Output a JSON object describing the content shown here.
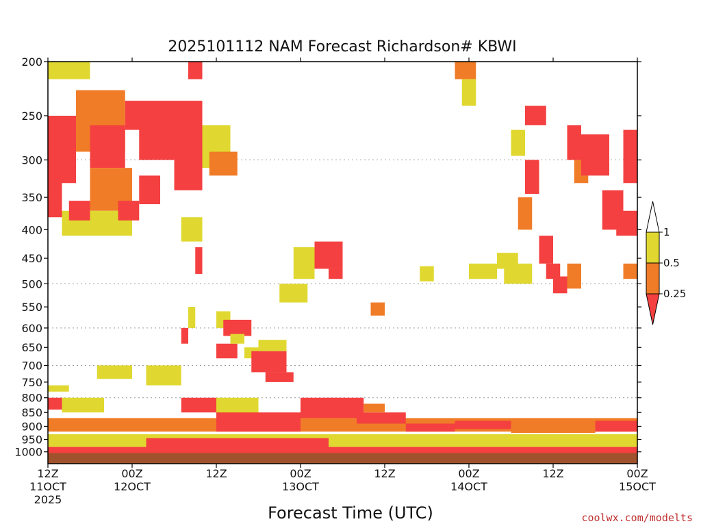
{
  "chart_data": {
    "type": "heatmap",
    "title": "2025101112 NAM Forecast Richardson# KBWI",
    "xlabel": "Forecast Time (UTC)",
    "credit": "coolwx.com/modelts",
    "y_axis": {
      "quantity": "pressure (hPa)",
      "scale": "log",
      "range": [
        1050,
        200
      ],
      "ticks": [
        200,
        250,
        300,
        350,
        400,
        450,
        500,
        550,
        600,
        650,
        700,
        750,
        800,
        850,
        900,
        950,
        1000
      ],
      "dotted_gridlines": [
        300,
        500,
        600,
        700,
        800,
        900
      ]
    },
    "x_axis": {
      "quantity": "forecast hour",
      "range": [
        0,
        84
      ],
      "tick_hours": [
        0,
        12,
        24,
        36,
        48,
        60,
        72,
        84
      ],
      "tick_labels": [
        {
          "hour": 0,
          "line1": "12Z",
          "line2": "11OCT",
          "line3": "2025"
        },
        {
          "hour": 12,
          "line1": "00Z",
          "line2": "12OCT",
          "line3": ""
        },
        {
          "hour": 24,
          "line1": "12Z",
          "line2": "",
          "line3": ""
        },
        {
          "hour": 36,
          "line1": "00Z",
          "line2": "13OCT",
          "line3": ""
        },
        {
          "hour": 48,
          "line1": "12Z",
          "line2": "",
          "line3": ""
        },
        {
          "hour": 60,
          "line1": "00Z",
          "line2": "14OCT",
          "line3": ""
        },
        {
          "hour": 72,
          "line1": "12Z",
          "line2": "",
          "line3": ""
        },
        {
          "hour": 84,
          "line1": "00Z",
          "line2": "15OCT",
          "line3": ""
        }
      ]
    },
    "legend": {
      "placement": "right",
      "boundaries": [
        "1",
        "0.5",
        "0.25"
      ],
      "bins": [
        {
          "range": "> 1",
          "color": "#ffffff"
        },
        {
          "range": "0.5 - 1",
          "color": "#e0d830"
        },
        {
          "range": "0.25 - 0.5",
          "color": "#f07c28"
        },
        {
          "range": "< 0.25",
          "color": "#f44040"
        }
      ]
    },
    "colors": {
      "red": "#f44040",
      "orange": "#f07c28",
      "yellow": "#e0d830",
      "ground": "#a0522d"
    },
    "surface_pressure_hpa": 1020,
    "regions": [
      {
        "h0": 0,
        "h1": 6,
        "p0": 200,
        "p1": 215,
        "bin": "yellow"
      },
      {
        "h0": 0,
        "h1": 2,
        "p0": 250,
        "p1": 380,
        "bin": "red"
      },
      {
        "h0": 1,
        "h1": 4,
        "p0": 250,
        "p1": 330,
        "bin": "red"
      },
      {
        "h0": 4,
        "h1": 11,
        "p0": 225,
        "p1": 290,
        "bin": "orange"
      },
      {
        "h0": 6,
        "h1": 11,
        "p0": 260,
        "p1": 310,
        "bin": "red"
      },
      {
        "h0": 6,
        "h1": 12,
        "p0": 310,
        "p1": 370,
        "bin": "orange"
      },
      {
        "h0": 2,
        "h1": 12,
        "p0": 370,
        "p1": 410,
        "bin": "yellow"
      },
      {
        "h0": 3,
        "h1": 6,
        "p0": 355,
        "p1": 385,
        "bin": "red"
      },
      {
        "h0": 10,
        "h1": 13,
        "p0": 355,
        "p1": 385,
        "bin": "red"
      },
      {
        "h0": 11,
        "h1": 18,
        "p0": 235,
        "p1": 265,
        "bin": "red"
      },
      {
        "h0": 13,
        "h1": 20,
        "p0": 250,
        "p1": 300,
        "bin": "red"
      },
      {
        "h0": 13,
        "h1": 16,
        "p0": 320,
        "p1": 360,
        "bin": "red"
      },
      {
        "h0": 18,
        "h1": 22,
        "p0": 235,
        "p1": 340,
        "bin": "red"
      },
      {
        "h0": 20,
        "h1": 22,
        "p0": 195,
        "p1": 215,
        "bin": "red"
      },
      {
        "h0": 22,
        "h1": 26,
        "p0": 260,
        "p1": 310,
        "bin": "yellow"
      },
      {
        "h0": 23,
        "h1": 27,
        "p0": 290,
        "p1": 320,
        "bin": "orange"
      },
      {
        "h0": 19,
        "h1": 22,
        "p0": 380,
        "p1": 420,
        "bin": "yellow"
      },
      {
        "h0": 21,
        "h1": 22,
        "p0": 430,
        "p1": 480,
        "bin": "red"
      },
      {
        "h0": 19,
        "h1": 20,
        "p0": 600,
        "p1": 640,
        "bin": "red"
      },
      {
        "h0": 20,
        "h1": 21,
        "p0": 550,
        "p1": 600,
        "bin": "yellow"
      },
      {
        "h0": 24,
        "h1": 26,
        "p0": 560,
        "p1": 600,
        "bin": "yellow"
      },
      {
        "h0": 25,
        "h1": 29,
        "p0": 580,
        "p1": 620,
        "bin": "red"
      },
      {
        "h0": 24,
        "h1": 27,
        "p0": 640,
        "p1": 680,
        "bin": "red"
      },
      {
        "h0": 26,
        "h1": 28,
        "p0": 615,
        "p1": 640,
        "bin": "yellow"
      },
      {
        "h0": 28,
        "h1": 30,
        "p0": 650,
        "p1": 680,
        "bin": "yellow"
      },
      {
        "h0": 29,
        "h1": 34,
        "p0": 660,
        "p1": 720,
        "bin": "red"
      },
      {
        "h0": 31,
        "h1": 35,
        "p0": 720,
        "p1": 750,
        "bin": "red"
      },
      {
        "h0": 30,
        "h1": 34,
        "p0": 630,
        "p1": 660,
        "bin": "yellow"
      },
      {
        "h0": 33,
        "h1": 37,
        "p0": 500,
        "p1": 540,
        "bin": "yellow"
      },
      {
        "h0": 35,
        "h1": 38,
        "p0": 430,
        "p1": 490,
        "bin": "yellow"
      },
      {
        "h0": 38,
        "h1": 42,
        "p0": 420,
        "p1": 470,
        "bin": "red"
      },
      {
        "h0": 40,
        "h1": 42,
        "p0": 470,
        "p1": 490,
        "bin": "red"
      },
      {
        "h0": 46,
        "h1": 48,
        "p0": 540,
        "p1": 570,
        "bin": "orange"
      },
      {
        "h0": 53,
        "h1": 55,
        "p0": 465,
        "p1": 495,
        "bin": "yellow"
      },
      {
        "h0": 58,
        "h1": 61,
        "p0": 200,
        "p1": 215,
        "bin": "orange"
      },
      {
        "h0": 59,
        "h1": 61,
        "p0": 215,
        "p1": 240,
        "bin": "yellow"
      },
      {
        "h0": 60,
        "h1": 64,
        "p0": 460,
        "p1": 490,
        "bin": "yellow"
      },
      {
        "h0": 64,
        "h1": 67,
        "p0": 440,
        "p1": 470,
        "bin": "yellow"
      },
      {
        "h0": 65,
        "h1": 69,
        "p0": 460,
        "p1": 500,
        "bin": "yellow"
      },
      {
        "h0": 66,
        "h1": 68,
        "p0": 265,
        "p1": 295,
        "bin": "yellow"
      },
      {
        "h0": 67,
        "h1": 69,
        "p0": 350,
        "p1": 400,
        "bin": "orange"
      },
      {
        "h0": 68,
        "h1": 71,
        "p0": 240,
        "p1": 260,
        "bin": "red"
      },
      {
        "h0": 68,
        "h1": 70,
        "p0": 300,
        "p1": 345,
        "bin": "red"
      },
      {
        "h0": 70,
        "h1": 72,
        "p0": 410,
        "p1": 460,
        "bin": "red"
      },
      {
        "h0": 71,
        "h1": 73,
        "p0": 460,
        "p1": 490,
        "bin": "red"
      },
      {
        "h0": 72,
        "h1": 74,
        "p0": 485,
        "p1": 520,
        "bin": "red"
      },
      {
        "h0": 74,
        "h1": 76,
        "p0": 260,
        "p1": 300,
        "bin": "red"
      },
      {
        "h0": 75,
        "h1": 77,
        "p0": 300,
        "p1": 330,
        "bin": "orange"
      },
      {
        "h0": 74,
        "h1": 76,
        "p0": 460,
        "p1": 510,
        "bin": "orange"
      },
      {
        "h0": 76,
        "h1": 80,
        "p0": 270,
        "p1": 320,
        "bin": "red"
      },
      {
        "h0": 79,
        "h1": 82,
        "p0": 340,
        "p1": 400,
        "bin": "red"
      },
      {
        "h0": 82,
        "h1": 84,
        "p0": 265,
        "p1": 330,
        "bin": "red"
      },
      {
        "h0": 81,
        "h1": 84,
        "p0": 370,
        "p1": 410,
        "bin": "red"
      },
      {
        "h0": 82,
        "h1": 84,
        "p0": 460,
        "p1": 490,
        "bin": "orange"
      },
      {
        "h0": 0,
        "h1": 3,
        "p0": 760,
        "p1": 780,
        "bin": "yellow"
      },
      {
        "h0": 0,
        "h1": 2,
        "p0": 800,
        "p1": 840,
        "bin": "red"
      },
      {
        "h0": 2,
        "h1": 8,
        "p0": 800,
        "p1": 850,
        "bin": "yellow"
      },
      {
        "h0": 7,
        "h1": 12,
        "p0": 700,
        "p1": 740,
        "bin": "yellow"
      },
      {
        "h0": 14,
        "h1": 19,
        "p0": 700,
        "p1": 760,
        "bin": "yellow"
      },
      {
        "h0": 19,
        "h1": 24,
        "p0": 800,
        "p1": 850,
        "bin": "red"
      },
      {
        "h0": 24,
        "h1": 30,
        "p0": 800,
        "p1": 860,
        "bin": "yellow"
      },
      {
        "h0": 0,
        "h1": 84,
        "p0": 930,
        "p1": 980,
        "bin": "yellow"
      },
      {
        "h0": 0,
        "h1": 84,
        "p0": 870,
        "p1": 920,
        "bin": "orange"
      },
      {
        "h0": 24,
        "h1": 36,
        "p0": 850,
        "p1": 920,
        "bin": "red"
      },
      {
        "h0": 36,
        "h1": 45,
        "p0": 800,
        "p1": 870,
        "bin": "red"
      },
      {
        "h0": 44,
        "h1": 51,
        "p0": 850,
        "p1": 890,
        "bin": "red"
      },
      {
        "h0": 45,
        "h1": 48,
        "p0": 820,
        "p1": 850,
        "bin": "orange"
      },
      {
        "h0": 51,
        "h1": 58,
        "p0": 890,
        "p1": 920,
        "bin": "red"
      },
      {
        "h0": 58,
        "h1": 66,
        "p0": 880,
        "p1": 910,
        "bin": "red"
      },
      {
        "h0": 66,
        "h1": 78,
        "p0": 895,
        "p1": 925,
        "bin": "orange"
      },
      {
        "h0": 78,
        "h1": 84,
        "p0": 880,
        "p1": 920,
        "bin": "red"
      },
      {
        "h0": 0,
        "h1": 84,
        "p0": 980,
        "p1": 1020,
        "bin": "red"
      },
      {
        "h0": 14,
        "h1": 40,
        "p0": 945,
        "p1": 1000,
        "bin": "red"
      }
    ]
  }
}
